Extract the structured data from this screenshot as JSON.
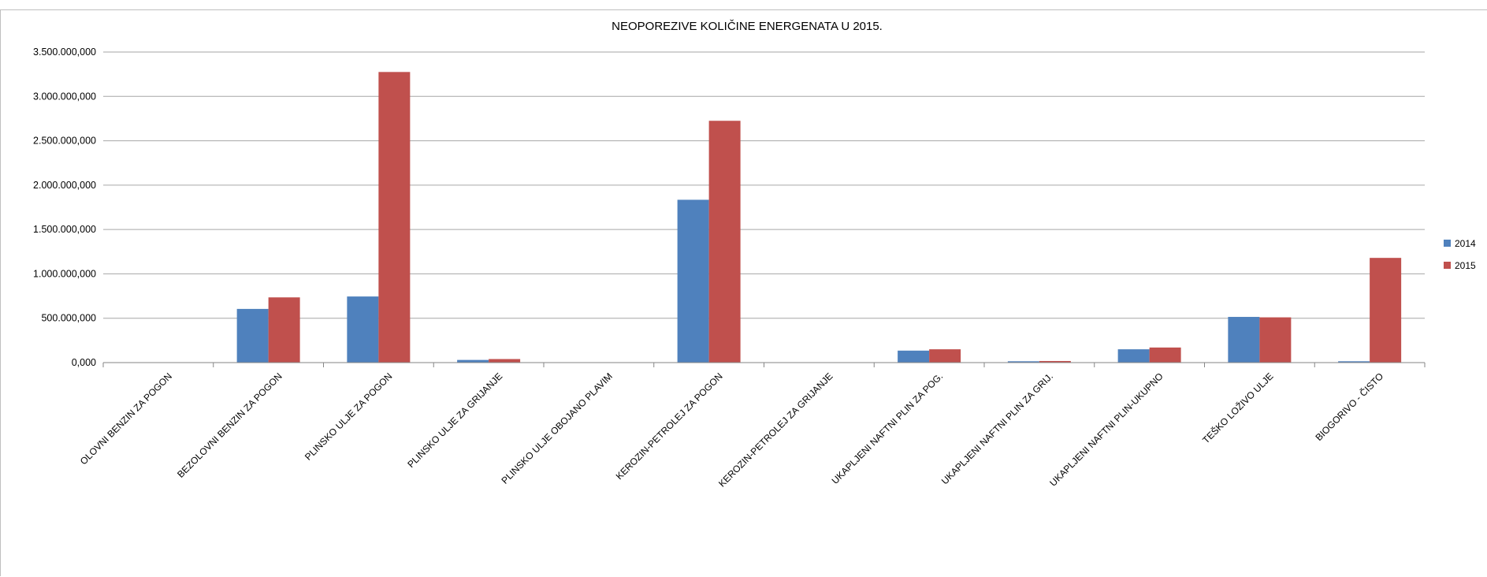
{
  "chart_data": {
    "type": "bar",
    "title": "NEOPOREZIVE KOLIČINE ENERGENATA  U 2015.",
    "xlabel": "",
    "ylabel": "",
    "ylim": [
      0,
      3500000000
    ],
    "yticks": [
      0,
      500000000,
      1000000000,
      1500000000,
      2000000000,
      2500000000,
      3000000000,
      3500000000
    ],
    "ytick_labels": [
      "0,000",
      "500.000,000",
      "1.000.000,000",
      "1.500.000,000",
      "2.000.000,000",
      "2.500.000,000",
      "3.000.000,000",
      "3.500.000,000"
    ],
    "grid": true,
    "legend_position": "right",
    "categories": [
      "OLOVNI BENZIN ZA POGON",
      "BEZOLOVNI BENZIN ZA POGON",
      "PLINSKO ULJE ZA POGON",
      "PLINSKO ULJE ZA GRIJANJE",
      "PLINSKO ULJE OBOJANO PLAVIM",
      "KEROZIN-PETROLEJ ZA POGON",
      "KEROZIN-PETROLEJ ZA GRIJANJE",
      "UKAPLJENI NAFTNI PLIN ZA POG.",
      "UKAPLJENI NAFTNI PLIN ZA GRIJ.",
      "UKAPLJENI NAFTNI PLIN-UKUPNO",
      "TEŠKO LOŽIVO ULJE",
      "BIOGORIVO - ČISTO"
    ],
    "series": [
      {
        "name": "2014",
        "color": "#4f81bd",
        "values": [
          0,
          605000000,
          745000000,
          30000000,
          0,
          1835000000,
          0,
          135000000,
          15000000,
          150000000,
          515000000,
          15000000
        ]
      },
      {
        "name": "2015",
        "color": "#c0504d",
        "values": [
          0,
          735000000,
          3275000000,
          40000000,
          0,
          2725000000,
          0,
          150000000,
          18000000,
          170000000,
          510000000,
          1180000000
        ]
      }
    ]
  }
}
